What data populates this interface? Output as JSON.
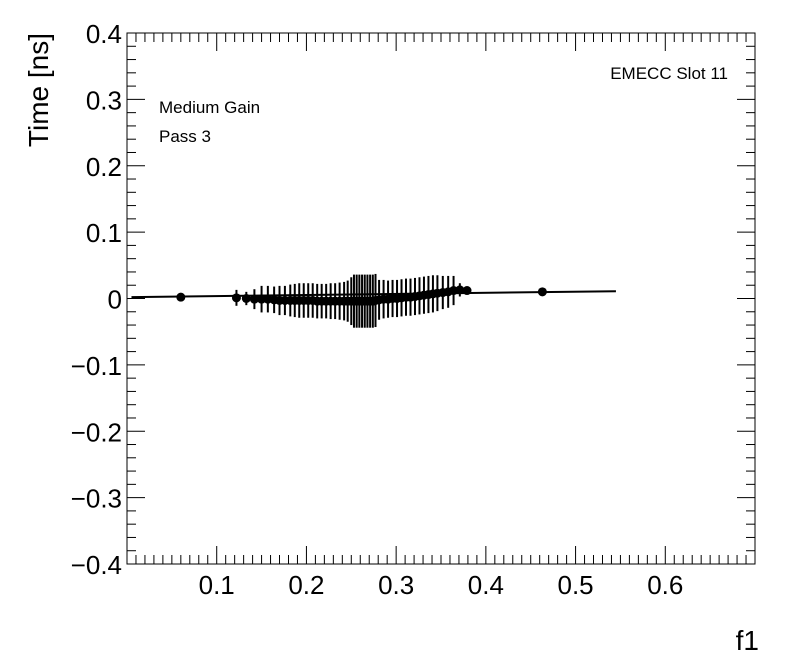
{
  "chart_data": {
    "type": "scatter",
    "title": "",
    "xlabel": "f1",
    "ylabel": "Time [ns]",
    "xlim": [
      0.0,
      0.7
    ],
    "ylim": [
      -0.4,
      0.4
    ],
    "x_ticks": [
      0.1,
      0.2,
      0.3,
      0.4,
      0.5,
      0.6
    ],
    "x_tick_labels": [
      "0.1",
      "0.2",
      "0.3",
      "0.4",
      "0.5",
      "0.6"
    ],
    "y_ticks": [
      -0.4,
      -0.3,
      -0.2,
      -0.1,
      0,
      0.1,
      0.2,
      0.3,
      0.4
    ],
    "y_tick_labels": [
      "−0.4",
      "−0.3",
      "−0.2",
      "−0.1",
      "0",
      "0.1",
      "0.2",
      "0.3",
      "0.4"
    ],
    "grid": false,
    "annotations": {
      "top_right": "EMECC Slot 11",
      "top_left_line1": "Medium Gain",
      "top_left_line2": "Pass 3"
    },
    "series": [
      {
        "points": [
          {
            "x": 0.06,
            "y": 0.002,
            "err": 0.006
          },
          {
            "x": 0.122,
            "y": 0.001,
            "err": 0.012
          },
          {
            "x": 0.133,
            "y": 0.0,
            "err": 0.01
          },
          {
            "x": 0.142,
            "y": -0.001,
            "err": 0.015
          },
          {
            "x": 0.15,
            "y": -0.001,
            "err": 0.02
          },
          {
            "x": 0.157,
            "y": -0.001,
            "err": 0.02
          },
          {
            "x": 0.164,
            "y": -0.002,
            "err": 0.02
          },
          {
            "x": 0.17,
            "y": -0.003,
            "err": 0.022
          },
          {
            "x": 0.176,
            "y": -0.003,
            "err": 0.022
          },
          {
            "x": 0.182,
            "y": -0.003,
            "err": 0.024
          },
          {
            "x": 0.187,
            "y": -0.003,
            "err": 0.025
          },
          {
            "x": 0.192,
            "y": -0.003,
            "err": 0.026
          },
          {
            "x": 0.197,
            "y": -0.003,
            "err": 0.026
          },
          {
            "x": 0.202,
            "y": -0.003,
            "err": 0.026
          },
          {
            "x": 0.207,
            "y": -0.003,
            "err": 0.026
          },
          {
            "x": 0.212,
            "y": -0.004,
            "err": 0.026
          },
          {
            "x": 0.217,
            "y": -0.004,
            "err": 0.026
          },
          {
            "x": 0.222,
            "y": -0.004,
            "err": 0.026
          },
          {
            "x": 0.227,
            "y": -0.004,
            "err": 0.027
          },
          {
            "x": 0.232,
            "y": -0.004,
            "err": 0.027
          },
          {
            "x": 0.237,
            "y": -0.004,
            "err": 0.028
          },
          {
            "x": 0.242,
            "y": -0.004,
            "err": 0.029
          },
          {
            "x": 0.246,
            "y": -0.004,
            "err": 0.031
          },
          {
            "x": 0.25,
            "y": -0.004,
            "err": 0.036
          },
          {
            "x": 0.253,
            "y": -0.004,
            "err": 0.04
          },
          {
            "x": 0.256,
            "y": -0.004,
            "err": 0.04
          },
          {
            "x": 0.259,
            "y": -0.004,
            "err": 0.04
          },
          {
            "x": 0.262,
            "y": -0.004,
            "err": 0.04
          },
          {
            "x": 0.265,
            "y": -0.004,
            "err": 0.04
          },
          {
            "x": 0.268,
            "y": -0.004,
            "err": 0.04
          },
          {
            "x": 0.271,
            "y": -0.004,
            "err": 0.04
          },
          {
            "x": 0.274,
            "y": -0.004,
            "err": 0.04
          },
          {
            "x": 0.277,
            "y": -0.003,
            "err": 0.04
          },
          {
            "x": 0.281,
            "y": -0.002,
            "err": 0.03
          },
          {
            "x": 0.286,
            "y": -0.001,
            "err": 0.029
          },
          {
            "x": 0.291,
            "y": -0.001,
            "err": 0.028
          },
          {
            "x": 0.296,
            "y": 0.0,
            "err": 0.028
          },
          {
            "x": 0.301,
            "y": 0.0,
            "err": 0.028
          },
          {
            "x": 0.306,
            "y": 0.001,
            "err": 0.028
          },
          {
            "x": 0.311,
            "y": 0.002,
            "err": 0.028
          },
          {
            "x": 0.316,
            "y": 0.002,
            "err": 0.028
          },
          {
            "x": 0.321,
            "y": 0.003,
            "err": 0.028
          },
          {
            "x": 0.326,
            "y": 0.004,
            "err": 0.028
          },
          {
            "x": 0.331,
            "y": 0.005,
            "err": 0.028
          },
          {
            "x": 0.336,
            "y": 0.006,
            "err": 0.028
          },
          {
            "x": 0.341,
            "y": 0.007,
            "err": 0.028
          },
          {
            "x": 0.346,
            "y": 0.008,
            "err": 0.027
          },
          {
            "x": 0.352,
            "y": 0.009,
            "err": 0.025
          },
          {
            "x": 0.358,
            "y": 0.01,
            "err": 0.024
          },
          {
            "x": 0.364,
            "y": 0.012,
            "err": 0.022
          },
          {
            "x": 0.371,
            "y": 0.013,
            "err": 0.01
          },
          {
            "x": 0.379,
            "y": 0.012,
            "err": 0.005
          },
          {
            "x": 0.463,
            "y": 0.01,
            "err": 0.005
          }
        ]
      }
    ],
    "fit_line": {
      "x": [
        0.005,
        0.545
      ],
      "y": [
        0.002,
        0.011
      ]
    }
  }
}
